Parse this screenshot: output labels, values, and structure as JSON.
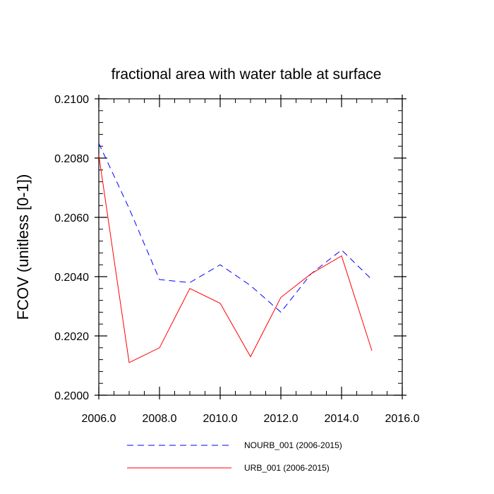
{
  "chart_data": {
    "type": "line",
    "title": "fractional area with water table at surface",
    "xlabel": "",
    "ylabel": "FCOV  (unitless [0-1])",
    "xlim": [
      2006,
      2016
    ],
    "ylim": [
      0.2,
      0.21
    ],
    "x_ticks": [
      2006,
      2008,
      2010,
      2012,
      2014,
      2016
    ],
    "x_tick_labels": [
      "2006.0",
      "2008.0",
      "2010.0",
      "2012.0",
      "2014.0",
      "2016.0"
    ],
    "y_ticks": [
      0.2,
      0.202,
      0.204,
      0.206,
      0.208,
      0.21
    ],
    "y_tick_labels": [
      "0.2000",
      "0.2020",
      "0.2040",
      "0.2060",
      "0.2080",
      "0.2100"
    ],
    "grid": false,
    "legend_position": "bottom",
    "x": [
      2006,
      2007,
      2008,
      2009,
      2010,
      2011,
      2012,
      2013,
      2014,
      2015
    ],
    "series": [
      {
        "name": "NOURB_001 (2006-2015)",
        "color": "#0000ff",
        "style": "dashed",
        "values": [
          0.2085,
          0.2063,
          0.2039,
          0.2038,
          0.2044,
          0.2037,
          0.2028,
          0.2041,
          0.2049,
          0.2039
        ]
      },
      {
        "name": "URB_001 (2006-2015)",
        "color": "#ff0000",
        "style": "solid",
        "values": [
          0.2081,
          0.2011,
          0.2016,
          0.2036,
          0.2031,
          0.2013,
          0.2033,
          0.2041,
          0.2047,
          0.2015
        ]
      }
    ]
  }
}
